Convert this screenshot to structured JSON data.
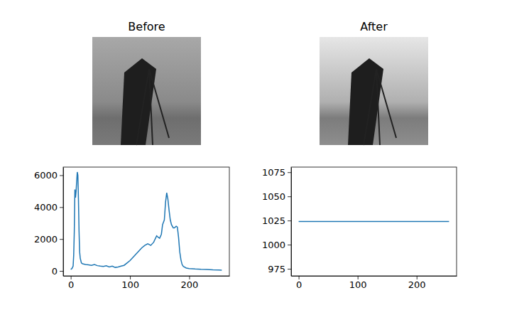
{
  "chart_data": [
    {
      "type": "image",
      "title": "Before"
    },
    {
      "type": "image",
      "title": "After"
    },
    {
      "type": "line",
      "color": "#1f77b4",
      "x": [
        0,
        2,
        4,
        5,
        6,
        7,
        8,
        9,
        10,
        11,
        12,
        13,
        14,
        15,
        16,
        17,
        18,
        20,
        25,
        30,
        35,
        40,
        45,
        50,
        55,
        60,
        65,
        70,
        75,
        80,
        85,
        90,
        95,
        100,
        105,
        110,
        115,
        120,
        125,
        130,
        135,
        140,
        145,
        148,
        150,
        153,
        155,
        158,
        160,
        162,
        164,
        166,
        168,
        170,
        173,
        175,
        178,
        180,
        182,
        184,
        186,
        188,
        190,
        195,
        200,
        210,
        220,
        230,
        240,
        250,
        255
      ],
      "values": [
        100,
        150,
        300,
        1000,
        2500,
        5100,
        4600,
        5000,
        5600,
        6200,
        6000,
        4500,
        2500,
        1200,
        800,
        650,
        500,
        450,
        400,
        380,
        350,
        400,
        330,
        300,
        280,
        320,
        250,
        300,
        220,
        250,
        300,
        350,
        500,
        650,
        850,
        1050,
        1250,
        1450,
        1600,
        1700,
        1600,
        1800,
        2200,
        2100,
        2050,
        2300,
        2900,
        3200,
        4300,
        4900,
        4500,
        3800,
        3200,
        2900,
        2700,
        2700,
        2800,
        2750,
        2100,
        1200,
        700,
        400,
        280,
        180,
        150,
        120,
        100,
        90,
        70,
        60,
        50
      ],
      "xlim": [
        -12.75,
        267.75
      ],
      "xticks": [
        0,
        100,
        200
      ],
      "ylim": [
        -310,
        6510
      ],
      "yticks": [
        0,
        2000,
        4000,
        6000
      ]
    },
    {
      "type": "line",
      "color": "#1f77b4",
      "x": [
        0,
        255
      ],
      "values": [
        1024,
        1024
      ],
      "xlim": [
        -12.75,
        267.75
      ],
      "xticks": [
        0,
        100,
        200
      ],
      "ylim": [
        967.68,
        1080.32
      ],
      "yticks": [
        975,
        1000,
        1025,
        1050,
        1075
      ]
    }
  ]
}
